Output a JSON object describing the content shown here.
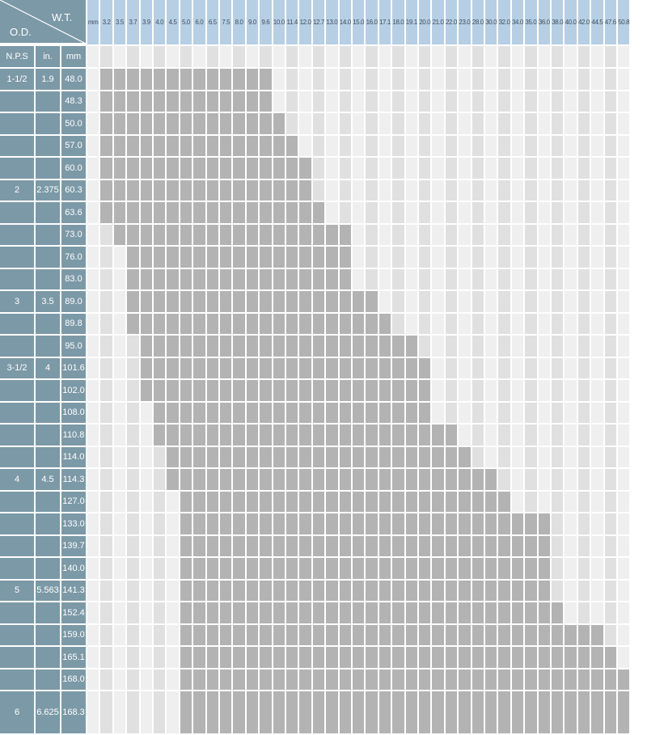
{
  "header": {
    "wt_label": "W.T.",
    "od_label": "O.D.",
    "wt_unit": "mm",
    "nps_label": "N.P.S",
    "in_label": "in.",
    "mm_label": "mm"
  },
  "wall_thickness": [
    "3.2",
    "3.5",
    "3.7",
    "3.9",
    "4.0",
    "4.5",
    "5.0",
    "6.0",
    "6.5",
    "7.5",
    "8.0",
    "9.0",
    "9.6",
    "10.0",
    "11.4",
    "12.0",
    "12.7",
    "13.0",
    "14.0",
    "15.0",
    "16.0",
    "17.1",
    "18.0",
    "19.1",
    "20.0",
    "21.0",
    "22.0",
    "23.0",
    "28.0",
    "30.0",
    "32.0",
    "34.0",
    "35.0",
    "36.0",
    "38.0",
    "40.0",
    "42.0",
    "44.5",
    "47.6",
    "50.8"
  ],
  "rows": [
    {
      "nps": "1-1/2",
      "in": "1.9",
      "mm": "48.0",
      "start": 1,
      "end": 13
    },
    {
      "nps": "",
      "in": "",
      "mm": "48.3",
      "start": 1,
      "end": 13
    },
    {
      "nps": "",
      "in": "",
      "mm": "50.0",
      "start": 1,
      "end": 14
    },
    {
      "nps": "",
      "in": "",
      "mm": "57.0",
      "start": 1,
      "end": 15
    },
    {
      "nps": "",
      "in": "",
      "mm": "60.0",
      "start": 1,
      "end": 16
    },
    {
      "nps": "2",
      "in": "2.375",
      "mm": "60.3",
      "start": 1,
      "end": 16
    },
    {
      "nps": "",
      "in": "",
      "mm": "63.6",
      "start": 1,
      "end": 17
    },
    {
      "nps": "",
      "in": "",
      "mm": "73.0",
      "start": 2,
      "end": 19
    },
    {
      "nps": "",
      "in": "",
      "mm": "76.0",
      "start": 3,
      "end": 19
    },
    {
      "nps": "",
      "in": "",
      "mm": "83.0",
      "start": 3,
      "end": 19
    },
    {
      "nps": "3",
      "in": "3.5",
      "mm": "89.0",
      "start": 3,
      "end": 21
    },
    {
      "nps": "",
      "in": "",
      "mm": "89.8",
      "start": 3,
      "end": 22
    },
    {
      "nps": "",
      "in": "",
      "mm": "95.0",
      "start": 4,
      "end": 24
    },
    {
      "nps": "3-1/2",
      "in": "4",
      "mm": "101.6",
      "start": 4,
      "end": 25
    },
    {
      "nps": "",
      "in": "",
      "mm": "102.0",
      "start": 4,
      "end": 25
    },
    {
      "nps": "",
      "in": "",
      "mm": "108.0",
      "start": 5,
      "end": 25
    },
    {
      "nps": "",
      "in": "",
      "mm": "110.8",
      "start": 5,
      "end": 27
    },
    {
      "nps": "",
      "in": "",
      "mm": "114.0",
      "start": 6,
      "end": 28
    },
    {
      "nps": "4",
      "in": "4.5",
      "mm": "114.3",
      "start": 6,
      "end": 30
    },
    {
      "nps": "",
      "in": "",
      "mm": "127.0",
      "start": 7,
      "end": 31
    },
    {
      "nps": "",
      "in": "",
      "mm": "133.0",
      "start": 7,
      "end": 34
    },
    {
      "nps": "",
      "in": "",
      "mm": "139.7",
      "start": 7,
      "end": 34
    },
    {
      "nps": "",
      "in": "",
      "mm": "140.0",
      "start": 7,
      "end": 34
    },
    {
      "nps": "5",
      "in": "5.563",
      "mm": "141.3",
      "start": 7,
      "end": 34
    },
    {
      "nps": "",
      "in": "",
      "mm": "152.4",
      "start": 7,
      "end": 35
    },
    {
      "nps": "",
      "in": "",
      "mm": "159.0",
      "start": 7,
      "end": 38
    },
    {
      "nps": "",
      "in": "",
      "mm": "165.1",
      "start": 7,
      "end": 39
    },
    {
      "nps": "",
      "in": "",
      "mm": "168.0",
      "start": 7,
      "end": 40
    },
    {
      "nps": "6",
      "in": "6.625",
      "mm": "168.3",
      "start": 7,
      "end": 40
    }
  ],
  "colors": {
    "side": "#7c99a7",
    "wt_head": "#b7cfe4",
    "available": "#b3b3b3",
    "empty_light": "#efefef",
    "empty_dark": "#e0e0e0"
  }
}
